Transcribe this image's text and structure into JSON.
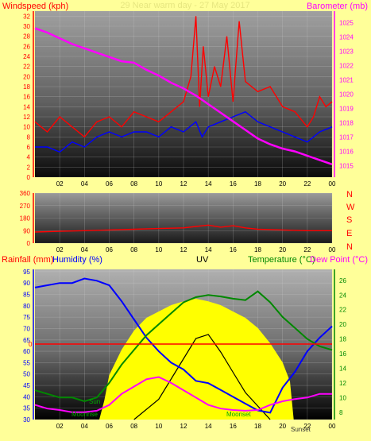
{
  "colors": {
    "background": "#ffff99",
    "wind": "#ff0000",
    "gust": "#ff0000",
    "avg": "#0000ff",
    "baro": "#ff00ff",
    "dir": "#ff0000",
    "temp": "#008800",
    "hum": "#0000ff",
    "dew": "#ff00ff",
    "solar": "#ffff00",
    "uv": "#000000"
  },
  "panel1": {
    "left_label": "Windspeed (kph)",
    "title": "29 Near warm day - 27 May 2017",
    "right_label": "Barometer (mb)"
  },
  "panel2": {
    "dirs": [
      "N",
      "W",
      "S",
      "E",
      "N"
    ]
  },
  "panel3": {
    "rain_label": "Rainfall (mm)",
    "hum_label": "Humidity (%)",
    "uv_label": "UV",
    "temp_label": "Temperature (°C)",
    "dew_label": "Dew Point (°C)",
    "rain_zero": "0",
    "annotations": {
      "sun": "Sun",
      "moonrise": "Moonrise",
      "moonset": "Moonset",
      "sunset": "Sunset"
    }
  },
  "chart_data": [
    {
      "type": "line",
      "title": "29 Near warm day - 27 May 2017",
      "x_ticks": [
        "02",
        "04",
        "06",
        "08",
        "10",
        "12",
        "14",
        "16",
        "18",
        "20",
        "22",
        "00"
      ],
      "ylabel": "Windspeed (kph)",
      "ylim": [
        0,
        33
      ],
      "yticks": [
        0,
        2,
        4,
        6,
        8,
        10,
        12,
        14,
        16,
        18,
        20,
        22,
        24,
        26,
        28,
        30,
        32
      ],
      "y2label": "Barometer (mb)",
      "y2lim": [
        1014.2,
        1025.8
      ],
      "y2ticks": [
        1015,
        1016,
        1017,
        1018,
        1019,
        1020,
        1021,
        1022,
        1023,
        1024,
        1025
      ],
      "series": [
        {
          "role": "gust",
          "x": [
            0,
            1,
            2,
            3,
            4,
            5,
            6,
            7,
            8,
            9,
            10,
            11,
            12,
            12.6,
            13,
            13.3,
            13.6,
            14,
            14.5,
            15,
            15.5,
            16,
            16.5,
            17,
            18,
            19,
            20,
            21,
            22,
            22.5,
            23,
            23.5,
            24
          ],
          "values": [
            11,
            9,
            12,
            10,
            8,
            11,
            12,
            10,
            13,
            12,
            11,
            13,
            15,
            20,
            32,
            14,
            26,
            16,
            22,
            18,
            28,
            15,
            31,
            19,
            17,
            18,
            14,
            13,
            10,
            12,
            16,
            14,
            15
          ]
        },
        {
          "role": "average",
          "x": [
            0,
            1,
            2,
            3,
            4,
            5,
            6,
            7,
            8,
            9,
            10,
            11,
            12,
            13,
            13.5,
            14,
            15,
            16,
            17,
            18,
            19,
            20,
            21,
            22,
            23,
            24
          ],
          "values": [
            6,
            6,
            5,
            7,
            6,
            8,
            9,
            8,
            9,
            9,
            8,
            10,
            9,
            11,
            8,
            10,
            11,
            12,
            13,
            11,
            10,
            9,
            8,
            7,
            9,
            10
          ]
        },
        {
          "role": "barometer",
          "x": [
            0,
            1,
            2,
            3,
            4,
            5,
            6,
            7,
            8,
            9,
            10,
            11,
            12,
            13,
            14,
            15,
            16,
            17,
            18,
            19,
            20,
            21,
            22,
            23,
            24
          ],
          "values": [
            1024.6,
            1024.3,
            1023.9,
            1023.5,
            1023.2,
            1022.9,
            1022.6,
            1022.3,
            1022.2,
            1021.7,
            1021.3,
            1020.8,
            1020.4,
            1019.9,
            1019.3,
            1018.7,
            1018.1,
            1017.5,
            1016.9,
            1016.5,
            1016.2,
            1016.0,
            1015.7,
            1015.4,
            1015.1
          ]
        }
      ]
    },
    {
      "type": "line",
      "x_ticks": [
        "02",
        "04",
        "06",
        "08",
        "10",
        "12",
        "14",
        "16",
        "18",
        "20",
        "22",
        "00"
      ],
      "ylabel": "Wind direction",
      "ylim": [
        0,
        360
      ],
      "yticks": [
        0,
        90,
        180,
        270,
        360
      ],
      "series": [
        {
          "role": "direction",
          "x": [
            0,
            2,
            4,
            6,
            8,
            10,
            12,
            13,
            14,
            15,
            16,
            17,
            18,
            20,
            22,
            24
          ],
          "values": [
            80,
            85,
            90,
            95,
            100,
            105,
            110,
            120,
            130,
            115,
            125,
            110,
            100,
            95,
            90,
            90
          ]
        }
      ]
    },
    {
      "type": "line",
      "x_ticks": [
        "02",
        "04",
        "06",
        "08",
        "10",
        "12",
        "14",
        "16",
        "18",
        "20",
        "22",
        "00"
      ],
      "ylabel": "Humidity (%)",
      "ylim": [
        30,
        96
      ],
      "yticks": [
        30,
        35,
        40,
        45,
        50,
        55,
        60,
        65,
        70,
        75,
        80,
        85,
        90,
        95
      ],
      "y2label": "Temperature (°C)",
      "y2lim": [
        7,
        27.5
      ],
      "y2ticks": [
        8,
        10,
        12,
        14,
        16,
        18,
        20,
        22,
        24,
        26
      ],
      "series": [
        {
          "role": "humidity",
          "x": [
            0,
            1,
            2,
            3,
            4,
            5,
            6,
            7,
            8,
            9,
            10,
            11,
            12,
            13,
            14,
            15,
            16,
            17,
            18,
            19,
            20,
            21,
            22,
            23,
            24
          ],
          "values": [
            88,
            89,
            90,
            90,
            92,
            91,
            89,
            82,
            74,
            66,
            60,
            55,
            52,
            47,
            46,
            43,
            40,
            37,
            34,
            33,
            44,
            51,
            60,
            66,
            71
          ]
        },
        {
          "role": "temperature",
          "x": [
            0,
            1,
            2,
            3,
            4,
            5,
            6,
            7,
            8,
            9,
            10,
            11,
            12,
            13,
            14,
            15,
            16,
            17,
            18,
            19,
            20,
            21,
            22,
            23,
            24
          ],
          "values": [
            11,
            10.5,
            10,
            10,
            9.5,
            10,
            12,
            14.5,
            16.5,
            18.5,
            20,
            21.5,
            23,
            23.7,
            24,
            23.8,
            23.5,
            23.3,
            24.5,
            23,
            21,
            19.5,
            18,
            17,
            16.5
          ]
        },
        {
          "role": "dew point",
          "x": [
            0,
            1,
            2,
            3,
            4,
            5,
            6,
            7,
            8,
            9,
            10,
            11,
            12,
            13,
            14,
            15,
            16,
            17,
            18,
            19,
            20,
            21,
            22,
            23,
            24
          ],
          "values": [
            9,
            8.5,
            8.3,
            8,
            8,
            8.2,
            9,
            10.5,
            11.5,
            12.5,
            12.8,
            12,
            11,
            10,
            9,
            8.5,
            8.3,
            8.2,
            8.3,
            9,
            9.5,
            9.8,
            10,
            10.5,
            10.5
          ]
        }
      ]
    }
  ]
}
